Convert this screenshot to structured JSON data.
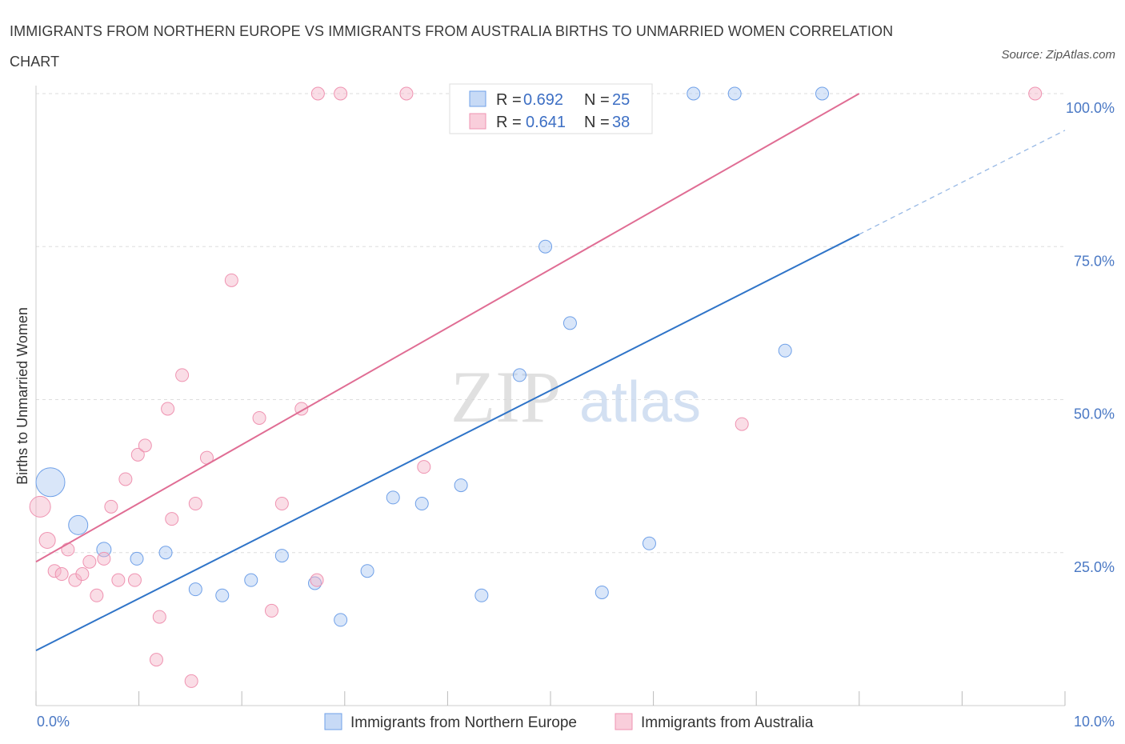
{
  "title": "IMMIGRANTS FROM NORTHERN EUROPE VS IMMIGRANTS FROM AUSTRALIA BIRTHS TO UNMARRIED WOMEN CORRELATION CHART",
  "source": "Source: ZipAtlas.com",
  "watermark": {
    "zip": "ZIP",
    "atlas": "atlas"
  },
  "colors": {
    "blue": "#6fa0e8",
    "blue_line": "#2f74c8",
    "pink": "#ef93b1",
    "pink_line": "#e06d94",
    "tick": "#4a78c4"
  },
  "legend": {
    "r_label": "R =",
    "n_label": "N =",
    "rows": [
      {
        "r": "0.692",
        "n": "25"
      },
      {
        "r": "0.641",
        "n": "38"
      }
    ]
  },
  "chart_data": {
    "type": "scatter",
    "xlabel": "",
    "ylabel": "Births to Unmarried Women",
    "xlim": [
      0,
      10
    ],
    "ylim": [
      0,
      100
    ],
    "x_tick_labels": [
      "0.0%",
      "10.0%"
    ],
    "y_tick_labels": [
      "25.0%",
      "50.0%",
      "75.0%",
      "100.0%"
    ],
    "y_ticks": [
      25,
      50,
      75,
      100
    ],
    "grid": true,
    "legend_position": "bottom",
    "series": [
      {
        "name": "Immigrants from Northern Europe",
        "color": "#6fa0e8",
        "r": "0.692",
        "n": "25",
        "trend": {
          "x": [
            0,
            8
          ],
          "y": [
            9,
            77
          ]
        },
        "trend_dashed": {
          "x": [
            8,
            10
          ],
          "y": [
            77,
            94
          ]
        },
        "points": [
          {
            "x": 0.14,
            "y": 36.5,
            "s": 18
          },
          {
            "x": 0.41,
            "y": 29.5,
            "s": 12
          },
          {
            "x": 0.66,
            "y": 25.5,
            "s": 9
          },
          {
            "x": 0.98,
            "y": 24.0,
            "s": 8
          },
          {
            "x": 1.26,
            "y": 25.0,
            "s": 8
          },
          {
            "x": 1.55,
            "y": 19.0,
            "s": 8
          },
          {
            "x": 1.81,
            "y": 18.0,
            "s": 8
          },
          {
            "x": 2.09,
            "y": 20.5,
            "s": 8
          },
          {
            "x": 2.39,
            "y": 24.5,
            "s": 8
          },
          {
            "x": 2.71,
            "y": 20.0,
            "s": 8
          },
          {
            "x": 2.96,
            "y": 14.0,
            "s": 8
          },
          {
            "x": 3.22,
            "y": 22.0,
            "s": 8
          },
          {
            "x": 3.47,
            "y": 34.0,
            "s": 8
          },
          {
            "x": 3.75,
            "y": 33.0,
            "s": 8
          },
          {
            "x": 4.13,
            "y": 36.0,
            "s": 8
          },
          {
            "x": 4.33,
            "y": 18.0,
            "s": 8
          },
          {
            "x": 4.7,
            "y": 54.0,
            "s": 8
          },
          {
            "x": 4.95,
            "y": 75.0,
            "s": 8
          },
          {
            "x": 5.19,
            "y": 62.5,
            "s": 8
          },
          {
            "x": 5.5,
            "y": 18.5,
            "s": 8
          },
          {
            "x": 5.96,
            "y": 26.5,
            "s": 8
          },
          {
            "x": 6.39,
            "y": 100.0,
            "s": 8
          },
          {
            "x": 6.79,
            "y": 100.0,
            "s": 8
          },
          {
            "x": 7.28,
            "y": 58.0,
            "s": 8
          },
          {
            "x": 7.64,
            "y": 100.0,
            "s": 8
          }
        ]
      },
      {
        "name": "Immigrants from Australia",
        "color": "#ef93b1",
        "r": "0.641",
        "n": "38",
        "trend": {
          "x": [
            0,
            8
          ],
          "y": [
            23.5,
            100
          ]
        },
        "points": [
          {
            "x": 0.04,
            "y": 32.5,
            "s": 13
          },
          {
            "x": 0.11,
            "y": 27.0,
            "s": 10
          },
          {
            "x": 0.18,
            "y": 22.0,
            "s": 8
          },
          {
            "x": 0.25,
            "y": 21.5,
            "s": 8
          },
          {
            "x": 0.31,
            "y": 25.5,
            "s": 8
          },
          {
            "x": 0.38,
            "y": 20.5,
            "s": 8
          },
          {
            "x": 0.45,
            "y": 21.5,
            "s": 8
          },
          {
            "x": 0.52,
            "y": 23.5,
            "s": 8
          },
          {
            "x": 0.59,
            "y": 18.0,
            "s": 8
          },
          {
            "x": 0.66,
            "y": 24.0,
            "s": 8
          },
          {
            "x": 0.73,
            "y": 32.5,
            "s": 8
          },
          {
            "x": 0.8,
            "y": 20.5,
            "s": 8
          },
          {
            "x": 0.87,
            "y": 37.0,
            "s": 8
          },
          {
            "x": 0.96,
            "y": 20.5,
            "s": 8
          },
          {
            "x": 0.99,
            "y": 41.0,
            "s": 8
          },
          {
            "x": 1.06,
            "y": 42.5,
            "s": 8
          },
          {
            "x": 1.17,
            "y": 7.5,
            "s": 8
          },
          {
            "x": 1.2,
            "y": 14.5,
            "s": 8
          },
          {
            "x": 1.28,
            "y": 48.5,
            "s": 8
          },
          {
            "x": 1.32,
            "y": 30.5,
            "s": 8
          },
          {
            "x": 1.42,
            "y": 54.0,
            "s": 8
          },
          {
            "x": 1.51,
            "y": 4.0,
            "s": 8
          },
          {
            "x": 1.55,
            "y": 33.0,
            "s": 8
          },
          {
            "x": 1.66,
            "y": 40.5,
            "s": 8
          },
          {
            "x": 1.9,
            "y": 69.5,
            "s": 8
          },
          {
            "x": 2.17,
            "y": 47.0,
            "s": 8
          },
          {
            "x": 2.29,
            "y": 15.5,
            "s": 8
          },
          {
            "x": 2.39,
            "y": 33.0,
            "s": 8
          },
          {
            "x": 2.58,
            "y": 48.5,
            "s": 8
          },
          {
            "x": 2.74,
            "y": 100.0,
            "s": 8
          },
          {
            "x": 2.73,
            "y": 20.5,
            "s": 8
          },
          {
            "x": 2.96,
            "y": 100.0,
            "s": 8
          },
          {
            "x": 3.6,
            "y": 100.0,
            "s": 8
          },
          {
            "x": 3.77,
            "y": 39.0,
            "s": 8
          },
          {
            "x": 4.09,
            "y": 100.0,
            "s": 8
          },
          {
            "x": 6.86,
            "y": 46.0,
            "s": 8
          },
          {
            "x": 9.71,
            "y": 100.0,
            "s": 8
          },
          {
            "x": 2.23,
            "y": 15.5,
            "s": 0
          }
        ]
      }
    ]
  }
}
